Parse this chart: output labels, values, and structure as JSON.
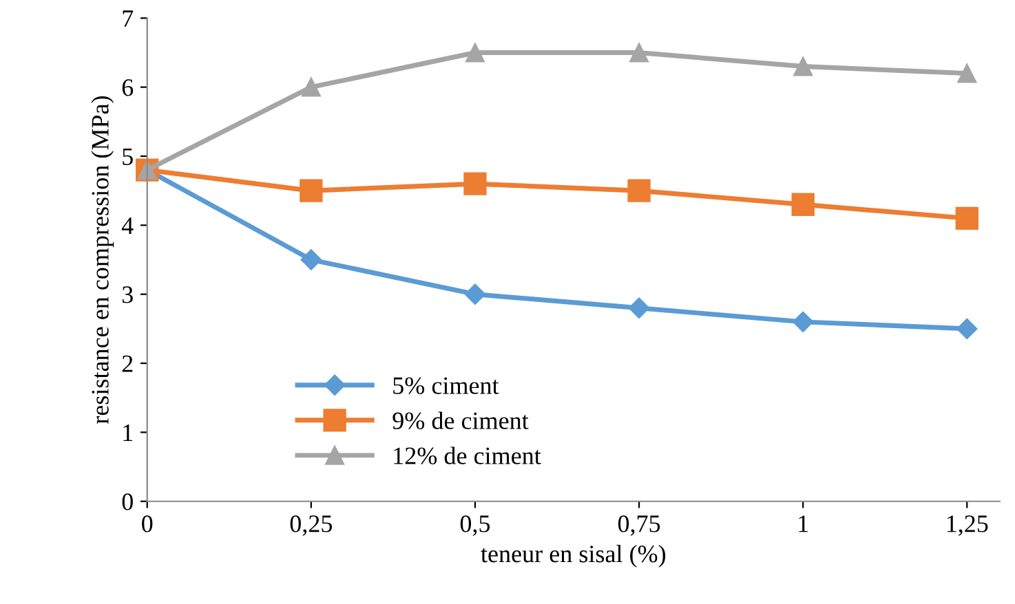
{
  "chart_data": {
    "type": "line",
    "xlabel": "teneur en sisal (%)",
    "ylabel": "resistance en compression (MPa)",
    "x": [
      0,
      0.25,
      0.5,
      0.75,
      1,
      1.25
    ],
    "xlim": [
      0,
      1.3
    ],
    "xticks": [
      0,
      {
        "value": 0.25,
        "label": "0,25"
      },
      {
        "value": 0.5,
        "label": "0,5"
      },
      {
        "value": 0.75,
        "label": "0,75"
      },
      1,
      {
        "value": 1.25,
        "label": "1,25"
      }
    ],
    "ylim": [
      0,
      7
    ],
    "yticks": [
      0,
      1,
      2,
      3,
      4,
      5,
      6,
      7
    ],
    "grid": false,
    "legend": "bottom left",
    "line_style": "solid",
    "series": [
      {
        "name": "5% ciment",
        "color": "#5b9bd5",
        "marker": "diamond",
        "values": [
          4.8,
          3.5,
          3.0,
          2.8,
          2.6,
          2.5
        ]
      },
      {
        "name": "9% de ciment",
        "color": "#ed7d31",
        "marker": "square",
        "values": [
          4.8,
          4.5,
          4.6,
          4.5,
          4.3,
          4.1
        ]
      },
      {
        "name": "12% de ciment",
        "color": "#a5a5a5",
        "marker": "triangle",
        "values": [
          4.8,
          6.0,
          6.5,
          6.5,
          6.3,
          6.2
        ]
      }
    ]
  }
}
